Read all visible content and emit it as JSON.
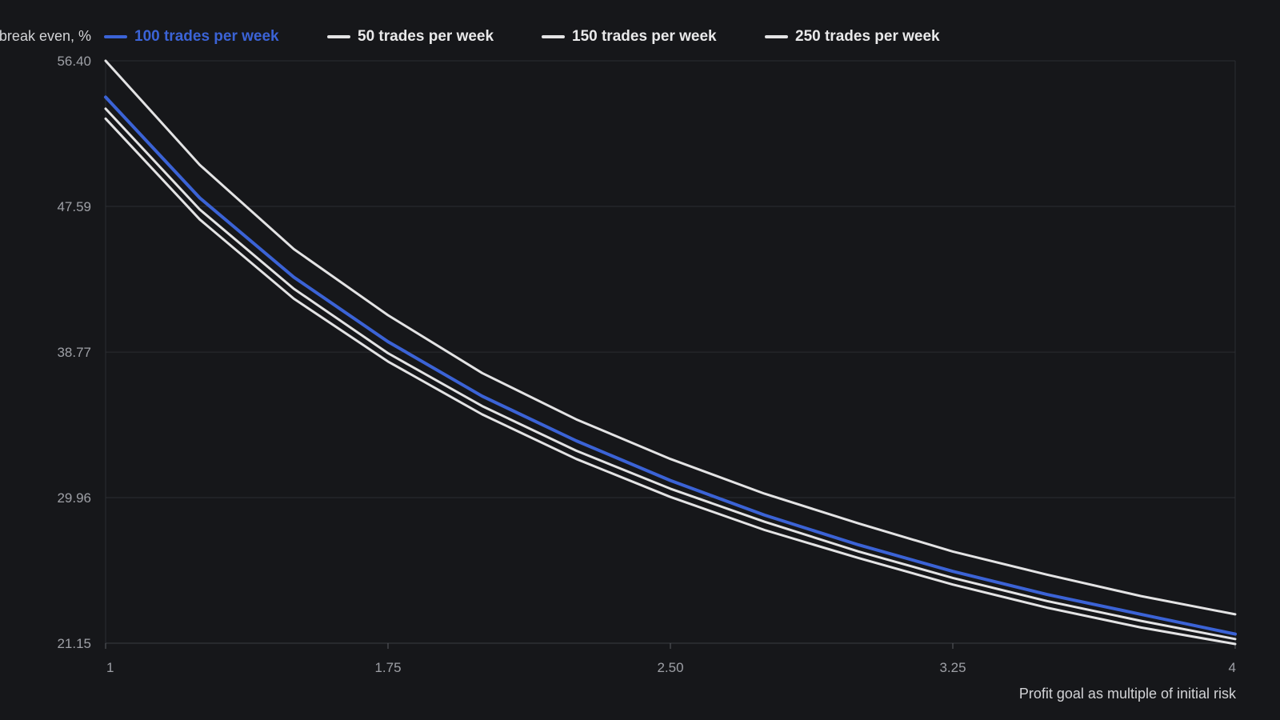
{
  "chart_data": {
    "type": "line",
    "ylabel": "break even, %",
    "xlabel": "Profit goal as multiple of initial risk",
    "ylim": [
      21.15,
      56.4
    ],
    "xlim": [
      1,
      4
    ],
    "y_ticks": [
      "56.40",
      "47.59",
      "38.77",
      "29.96",
      "21.15"
    ],
    "y_tick_values": [
      56.4,
      47.59,
      38.77,
      29.96,
      21.15
    ],
    "x_ticks": [
      "1",
      "1.75",
      "2.50",
      "3.25",
      "4"
    ],
    "x_tick_values": [
      1,
      1.75,
      2.5,
      3.25,
      4
    ],
    "x": [
      1,
      1.25,
      1.5,
      1.75,
      2,
      2.25,
      2.5,
      2.75,
      3,
      3.25,
      3.5,
      3.75,
      4
    ],
    "grid": true,
    "legend_position": "top",
    "series": [
      {
        "name": "100 trades per week",
        "color": "#3b63d6",
        "values": [
          54.2,
          48.1,
          43.3,
          39.4,
          36.1,
          33.4,
          31.0,
          28.9,
          27.1,
          25.5,
          24.1,
          22.9,
          21.7
        ]
      },
      {
        "name": "50 trades per week",
        "color": "#e3e3e4",
        "values": [
          56.4,
          50.1,
          45.0,
          41.0,
          37.5,
          34.7,
          32.3,
          30.2,
          28.4,
          26.7,
          25.3,
          24.0,
          22.9
        ]
      },
      {
        "name": "150 trades per week",
        "color": "#e3e3e4",
        "values": [
          53.5,
          47.4,
          42.6,
          38.7,
          35.5,
          32.8,
          30.5,
          28.5,
          26.7,
          25.1,
          23.7,
          22.5,
          21.4
        ]
      },
      {
        "name": "250 trades per week",
        "color": "#e3e3e4",
        "values": [
          52.9,
          46.8,
          42.0,
          38.2,
          35.0,
          32.3,
          30.0,
          28.0,
          26.3,
          24.7,
          23.3,
          22.1,
          21.1
        ]
      }
    ]
  }
}
